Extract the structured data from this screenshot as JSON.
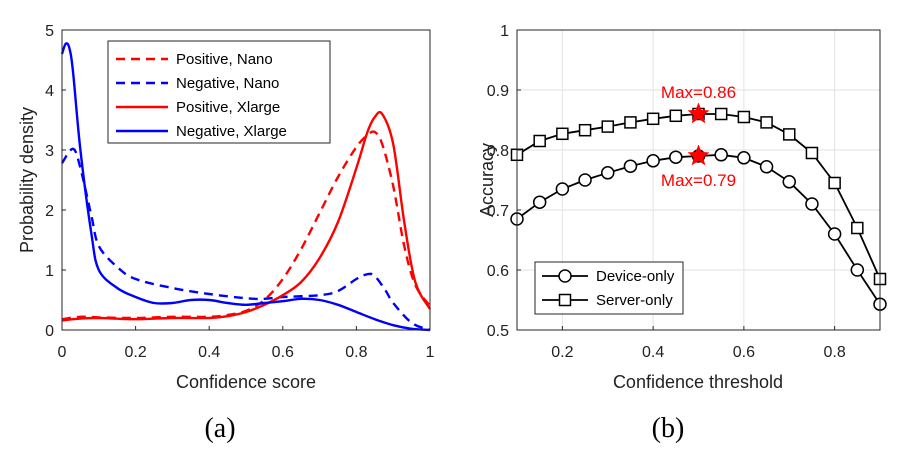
{
  "chart_data": [
    {
      "type": "line",
      "panel": "(a)",
      "xlabel": "Confidence score",
      "ylabel": "Probability density",
      "xlim": [
        0,
        1
      ],
      "ylim": [
        0,
        5
      ],
      "xticks": [
        "0",
        "0.2",
        "0.4",
        "0.6",
        "0.8",
        "1"
      ],
      "yticks": [
        "0",
        "1",
        "2",
        "3",
        "4",
        "5"
      ],
      "legend_position": "top-right",
      "series": [
        {
          "name": "Positive, Nano",
          "color": "#ff0000",
          "dashed": true,
          "x": [
            0,
            0.05,
            0.1,
            0.2,
            0.3,
            0.4,
            0.45,
            0.5,
            0.55,
            0.6,
            0.65,
            0.7,
            0.75,
            0.8,
            0.83,
            0.85,
            0.87,
            0.9,
            0.93,
            0.96,
            1.0
          ],
          "y": [
            0.18,
            0.22,
            0.21,
            0.2,
            0.22,
            0.22,
            0.25,
            0.32,
            0.5,
            0.85,
            1.35,
            1.95,
            2.55,
            3.05,
            3.25,
            3.3,
            3.1,
            2.4,
            1.4,
            0.75,
            0.4
          ]
        },
        {
          "name": "Negative, Nano",
          "color": "#0000ff",
          "dashed": true,
          "x": [
            0,
            0.03,
            0.05,
            0.08,
            0.1,
            0.15,
            0.2,
            0.3,
            0.4,
            0.5,
            0.55,
            0.6,
            0.7,
            0.75,
            0.8,
            0.83,
            0.85,
            0.88,
            0.9,
            0.95,
            1.0
          ],
          "y": [
            2.78,
            3.02,
            2.7,
            1.9,
            1.4,
            1.05,
            0.85,
            0.7,
            0.6,
            0.53,
            0.52,
            0.55,
            0.58,
            0.65,
            0.85,
            0.93,
            0.9,
            0.65,
            0.45,
            0.12,
            0.0
          ]
        },
        {
          "name": "Positive, Xlarge",
          "color": "#ff0000",
          "dashed": false,
          "x": [
            0,
            0.05,
            0.1,
            0.2,
            0.3,
            0.4,
            0.45,
            0.5,
            0.55,
            0.6,
            0.65,
            0.7,
            0.75,
            0.8,
            0.83,
            0.85,
            0.87,
            0.9,
            0.93,
            0.96,
            1.0
          ],
          "y": [
            0.16,
            0.19,
            0.2,
            0.18,
            0.2,
            0.2,
            0.23,
            0.3,
            0.42,
            0.58,
            0.8,
            1.2,
            1.8,
            2.7,
            3.3,
            3.55,
            3.6,
            3.1,
            1.8,
            0.8,
            0.35
          ]
        },
        {
          "name": "Negative, Xlarge",
          "color": "#0000ff",
          "dashed": false,
          "x": [
            0,
            0.01,
            0.02,
            0.03,
            0.05,
            0.08,
            0.1,
            0.15,
            0.2,
            0.25,
            0.3,
            0.35,
            0.4,
            0.45,
            0.5,
            0.55,
            0.6,
            0.65,
            0.7,
            0.75,
            0.8,
            0.85,
            0.9,
            0.95,
            1.0
          ],
          "y": [
            4.6,
            4.77,
            4.7,
            4.3,
            3.0,
            1.6,
            1.0,
            0.7,
            0.55,
            0.45,
            0.45,
            0.5,
            0.5,
            0.45,
            0.42,
            0.45,
            0.48,
            0.52,
            0.5,
            0.42,
            0.3,
            0.18,
            0.08,
            0.02,
            0.0
          ]
        }
      ]
    },
    {
      "type": "line",
      "panel": "(b)",
      "xlabel": "Confidence threshold",
      "ylabel": "Accuracy",
      "xlim": [
        0.1,
        0.9
      ],
      "ylim": [
        0.5,
        1.0
      ],
      "xticks": [
        "0.2",
        "0.4",
        "0.6",
        "0.8"
      ],
      "yticks": [
        "0.5",
        "0.6",
        "0.7",
        "0.8",
        "0.9",
        "1"
      ],
      "legend_position": "bottom-left",
      "series": [
        {
          "name": "Device-only",
          "color": "#000000",
          "marker": "circle",
          "x": [
            0.1,
            0.15,
            0.2,
            0.25,
            0.3,
            0.35,
            0.4,
            0.45,
            0.5,
            0.55,
            0.6,
            0.65,
            0.7,
            0.75,
            0.8,
            0.85,
            0.9
          ],
          "y": [
            0.685,
            0.713,
            0.735,
            0.75,
            0.762,
            0.773,
            0.782,
            0.788,
            0.79,
            0.792,
            0.787,
            0.772,
            0.747,
            0.71,
            0.66,
            0.6,
            0.543
          ]
        },
        {
          "name": "Server-only",
          "color": "#000000",
          "marker": "square",
          "x": [
            0.1,
            0.15,
            0.2,
            0.25,
            0.3,
            0.35,
            0.4,
            0.45,
            0.5,
            0.55,
            0.6,
            0.65,
            0.7,
            0.75,
            0.8,
            0.85,
            0.9
          ],
          "y": [
            0.792,
            0.815,
            0.827,
            0.833,
            0.839,
            0.846,
            0.852,
            0.857,
            0.86,
            0.86,
            0.855,
            0.846,
            0.826,
            0.795,
            0.745,
            0.67,
            0.585
          ]
        }
      ],
      "highlights": [
        {
          "x": 0.5,
          "y": 0.86,
          "label": "Max=0.86",
          "label_position": "above",
          "color": "#ff0000"
        },
        {
          "x": 0.5,
          "y": 0.79,
          "label": "Max=0.79",
          "label_position": "below",
          "color": "#ff0000"
        }
      ]
    }
  ]
}
